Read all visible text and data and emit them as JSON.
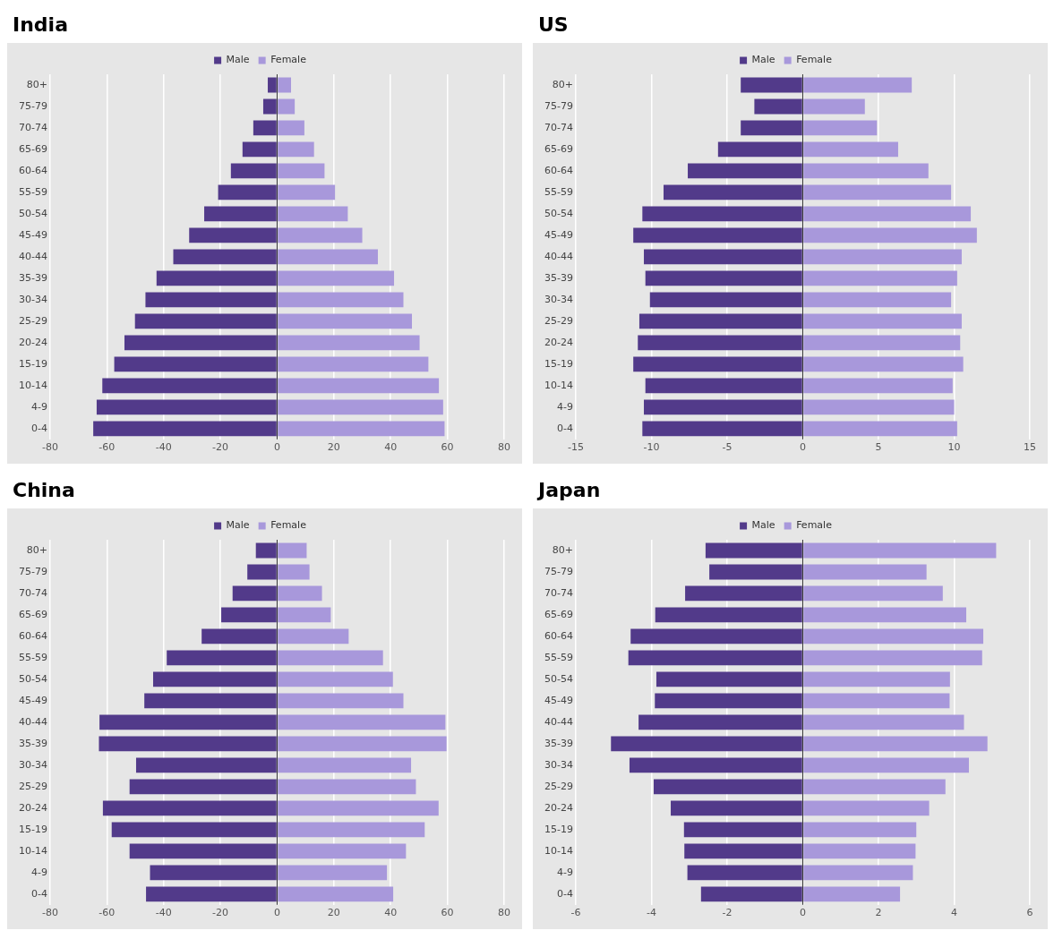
{
  "chart_data": [
    {
      "type": "bar",
      "title": "India",
      "orientation": "horizontal",
      "stacked": true,
      "grid": "x",
      "legend": "top",
      "categories": [
        "80+",
        "75-79",
        "70-74",
        "65-69",
        "60-64",
        "55-59",
        "50-54",
        "45-49",
        "40-44",
        "35-39",
        "30-34",
        "25-29",
        "20-24",
        "15-19",
        "10-14",
        "4-9",
        "0-4"
      ],
      "xlim": [
        -80,
        80
      ],
      "xticks": [
        -80,
        -60,
        -40,
        -20,
        0,
        20,
        40,
        60,
        80
      ],
      "series": [
        {
          "name": "Male",
          "color": "#523a8a",
          "values": [
            -3.3,
            -4.9,
            -8.4,
            -12.2,
            -16.3,
            -20.8,
            -25.7,
            -31,
            -36.6,
            -42.5,
            -46.4,
            -50.1,
            -53.8,
            -57.4,
            -61.6,
            -63.6,
            -64.8
          ]
        },
        {
          "name": "Female",
          "color": "#a898db",
          "values": [
            4.9,
            6.2,
            9.6,
            13,
            16.7,
            20.4,
            24.9,
            30,
            35.5,
            41.2,
            44.5,
            47.5,
            50.2,
            53.3,
            57,
            58.5,
            59
          ]
        }
      ]
    },
    {
      "type": "bar",
      "title": "US",
      "orientation": "horizontal",
      "stacked": true,
      "grid": "x",
      "legend": "top",
      "categories": [
        "80+",
        "75-79",
        "70-74",
        "65-69",
        "60-64",
        "55-59",
        "50-54",
        "45-49",
        "40-44",
        "35-39",
        "30-34",
        "25-29",
        "20-24",
        "15-19",
        "10-14",
        "4-9",
        "0-4"
      ],
      "xlim": [
        -15,
        15
      ],
      "xticks": [
        -15,
        -10,
        -5,
        0,
        5,
        10,
        15
      ],
      "series": [
        {
          "name": "Male",
          "color": "#523a8a",
          "values": [
            -4.1,
            -3.2,
            -4.1,
            -5.6,
            -7.6,
            -9.2,
            -10.6,
            -11.2,
            -10.5,
            -10.4,
            -10.1,
            -10.8,
            -10.9,
            -11.2,
            -10.4,
            -10.5,
            -10.6
          ]
        },
        {
          "name": "Female",
          "color": "#a898db",
          "values": [
            7.2,
            4.1,
            4.9,
            6.3,
            8.3,
            9.8,
            11.1,
            11.5,
            10.5,
            10.2,
            9.8,
            10.5,
            10.4,
            10.6,
            9.9,
            10,
            10.2
          ]
        }
      ]
    },
    {
      "type": "bar",
      "title": "China",
      "orientation": "horizontal",
      "stacked": true,
      "grid": "x",
      "legend": "top",
      "categories": [
        "80+",
        "75-79",
        "70-74",
        "65-69",
        "60-64",
        "55-59",
        "50-54",
        "45-49",
        "40-44",
        "35-39",
        "30-34",
        "25-29",
        "20-24",
        "15-19",
        "10-14",
        "4-9",
        "0-4"
      ],
      "xlim": [
        -80,
        80
      ],
      "xticks": [
        -80,
        -60,
        -40,
        -20,
        0,
        20,
        40,
        60,
        80
      ],
      "series": [
        {
          "name": "Male",
          "color": "#523a8a",
          "values": [
            -7.5,
            -10.5,
            -15.7,
            -19.7,
            -26.6,
            -38.9,
            -43.7,
            -46.8,
            -62.6,
            -62.8,
            -49.7,
            -52,
            -61.4,
            -58.3,
            -52,
            -44.8,
            -46.2
          ]
        },
        {
          "name": "Female",
          "color": "#a898db",
          "values": [
            10.4,
            11.4,
            15.8,
            18.9,
            25.2,
            37.3,
            40.8,
            44.5,
            59.3,
            59.7,
            47.2,
            48.9,
            56.9,
            52,
            45.4,
            38.7,
            40.9
          ]
        }
      ]
    },
    {
      "type": "bar",
      "title": "Japan",
      "orientation": "horizontal",
      "stacked": true,
      "grid": "x",
      "legend": "top",
      "categories": [
        "80+",
        "75-79",
        "70-74",
        "65-69",
        "60-64",
        "55-59",
        "50-54",
        "45-49",
        "40-44",
        "35-39",
        "30-34",
        "25-29",
        "20-24",
        "15-19",
        "10-14",
        "4-9",
        "0-4"
      ],
      "xlim": [
        -6,
        6
      ],
      "xticks": [
        -6,
        -4,
        -2,
        0,
        2,
        4,
        6
      ],
      "series": [
        {
          "name": "Male",
          "color": "#523a8a",
          "values": [
            -2.57,
            -2.47,
            -3.11,
            -3.9,
            -4.55,
            -4.61,
            -3.87,
            -3.91,
            -4.34,
            -5.07,
            -4.58,
            -3.94,
            -3.49,
            -3.14,
            -3.13,
            -3.05,
            -2.69
          ]
        },
        {
          "name": "Female",
          "color": "#a898db",
          "values": [
            5.11,
            3.27,
            3.7,
            4.32,
            4.77,
            4.74,
            3.89,
            3.88,
            4.26,
            4.88,
            4.39,
            3.77,
            3.34,
            3,
            2.98,
            2.91,
            2.57
          ]
        }
      ]
    }
  ]
}
